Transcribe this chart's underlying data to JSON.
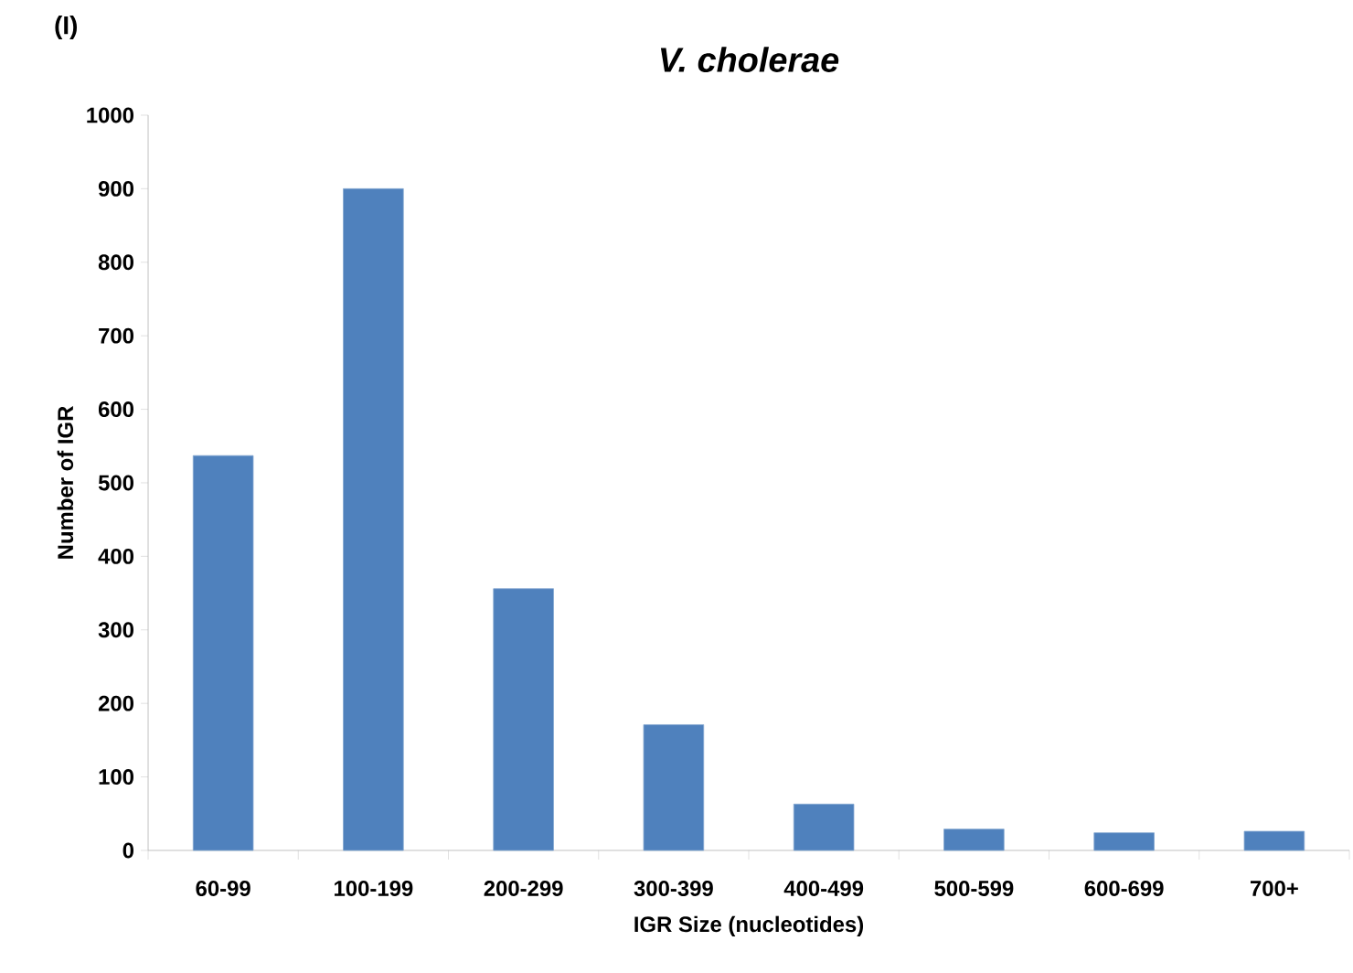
{
  "chart_data": {
    "type": "bar",
    "title": "V. cholerae",
    "xlabel": "IGR Size (nucleotides)",
    "ylabel": "Number of IGR",
    "annotations": [
      "(I)"
    ],
    "categories": [
      "60-99",
      "100-199",
      "200-299",
      "300-399",
      "400-499",
      "500-599",
      "600-699",
      "700+"
    ],
    "values": [
      537,
      900,
      356,
      171,
      63,
      29,
      24,
      26
    ],
    "color": "#4f81bd",
    "ylim": [
      0,
      1000
    ],
    "yticks": [
      0,
      100,
      200,
      300,
      400,
      500,
      600,
      700,
      800,
      900,
      1000
    ],
    "grid": false
  }
}
